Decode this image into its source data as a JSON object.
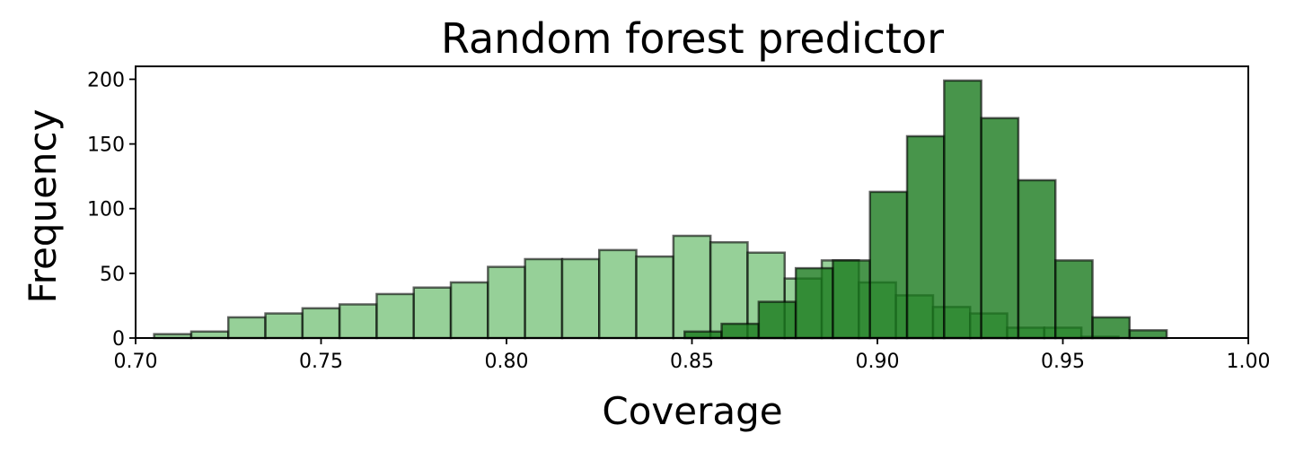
{
  "chart_data": {
    "type": "bar",
    "title": "Random forest predictor",
    "xlabel": "Coverage",
    "ylabel": "Frequency",
    "xlim": [
      0.7,
      1.0
    ],
    "ylim": [
      0,
      210
    ],
    "xticks": [
      "0.70",
      "0.75",
      "0.80",
      "0.85",
      "0.90",
      "0.95",
      "1.00"
    ],
    "yticks": [
      "0",
      "50",
      "100",
      "150",
      "200"
    ],
    "grid": false,
    "series": [
      {
        "color": "#7cc47e",
        "alpha": 0.8,
        "bin_width": 0.01,
        "bins": [
          {
            "x0": 0.705,
            "count": 3
          },
          {
            "x0": 0.715,
            "count": 5
          },
          {
            "x0": 0.725,
            "count": 16
          },
          {
            "x0": 0.735,
            "count": 19
          },
          {
            "x0": 0.745,
            "count": 23
          },
          {
            "x0": 0.755,
            "count": 26
          },
          {
            "x0": 0.765,
            "count": 34
          },
          {
            "x0": 0.775,
            "count": 39
          },
          {
            "x0": 0.785,
            "count": 43
          },
          {
            "x0": 0.795,
            "count": 55
          },
          {
            "x0": 0.805,
            "count": 61
          },
          {
            "x0": 0.815,
            "count": 61
          },
          {
            "x0": 0.825,
            "count": 68
          },
          {
            "x0": 0.835,
            "count": 63
          },
          {
            "x0": 0.845,
            "count": 79
          },
          {
            "x0": 0.855,
            "count": 74
          },
          {
            "x0": 0.865,
            "count": 66
          },
          {
            "x0": 0.875,
            "count": 46
          },
          {
            "x0": 0.885,
            "count": 60
          },
          {
            "x0": 0.895,
            "count": 43
          },
          {
            "x0": 0.905,
            "count": 33
          },
          {
            "x0": 0.915,
            "count": 24
          },
          {
            "x0": 0.925,
            "count": 19
          },
          {
            "x0": 0.935,
            "count": 8
          },
          {
            "x0": 0.945,
            "count": 8
          },
          {
            "x0": 0.955,
            "count": 1
          }
        ]
      },
      {
        "color": "#1a7a1e",
        "alpha": 0.8,
        "bin_width": 0.01,
        "bins": [
          {
            "x0": 0.848,
            "count": 5
          },
          {
            "x0": 0.858,
            "count": 11
          },
          {
            "x0": 0.868,
            "count": 28
          },
          {
            "x0": 0.878,
            "count": 54
          },
          {
            "x0": 0.888,
            "count": 60
          },
          {
            "x0": 0.898,
            "count": 113
          },
          {
            "x0": 0.908,
            "count": 156
          },
          {
            "x0": 0.918,
            "count": 199
          },
          {
            "x0": 0.928,
            "count": 170
          },
          {
            "x0": 0.938,
            "count": 122
          },
          {
            "x0": 0.948,
            "count": 60
          },
          {
            "x0": 0.958,
            "count": 16
          },
          {
            "x0": 0.968,
            "count": 6
          }
        ]
      }
    ]
  }
}
